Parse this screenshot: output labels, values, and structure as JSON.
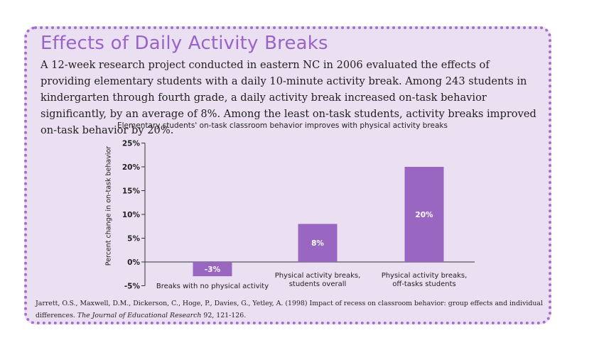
{
  "heading": "Effects of Daily Activity Breaks",
  "intro": "A 12-week research project conducted in eastern NC in 2006 evaluated the effects of providing elementary students with a daily 10-minute activity break. Among 243 students in kindergarten through fourth grade, a daily activity break increased on-task behavior significantly, by an average of 8%. Among the least on-task students, activity breaks improved on-task behavior by 20%.",
  "citation": {
    "authors": "Jarrett, O.S., Maxwell, D.M., Dickerson, C., Hoge, P., Davies, G., Yetley, A. (1998) Impact of recess on classroom behavior: group effects and individual differences. ",
    "journal": "The Journal of Educational Research",
    "rest": " 92, 121-126."
  },
  "colors": {
    "accent": "#9a63c8",
    "bar": "#9966c2",
    "card_background": "#eae0f1",
    "border": "#a26fce"
  },
  "chart_data": {
    "type": "bar",
    "title": "Elementary students' on-task classroom behavior improves with physical activity breaks",
    "ylabel": "Percent change in on-task behavior",
    "xlabel": "",
    "ylim": [
      -5,
      25
    ],
    "yticks": [
      25,
      20,
      15,
      10,
      5,
      0,
      -5
    ],
    "ytick_labels": [
      "25%",
      "20%",
      "15%",
      "10%",
      "5%",
      "0%",
      "-5%"
    ],
    "grid": false,
    "categories": [
      [
        "Breaks with no physical activity"
      ],
      [
        "Physical activity breaks,",
        "students overall"
      ],
      [
        "Physical activity breaks,",
        "off-tasks students"
      ]
    ],
    "values": [
      -3,
      8,
      20
    ],
    "value_labels": [
      "-3%",
      "8%",
      "20%"
    ]
  }
}
